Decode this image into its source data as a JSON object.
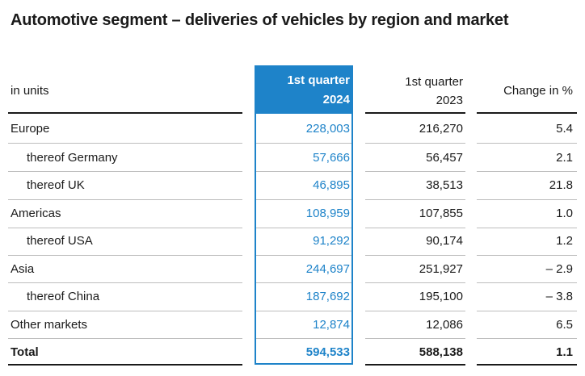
{
  "title": "Automotive segment – deliveries of vehicles by region and market",
  "header": {
    "units": "in units",
    "col1_line1": "1st quarter",
    "col1_line2": "2024",
    "col2_line1": "1st quarter",
    "col2_line2": "2023",
    "col3": "Change in %"
  },
  "rows": [
    {
      "label": "Europe",
      "q2024": "228,003",
      "q2023": "216,270",
      "change": "5.4"
    },
    {
      "label": "thereof Germany",
      "q2024": "57,666",
      "q2023": "56,457",
      "change": "2.1"
    },
    {
      "label": "thereof UK",
      "q2024": "46,895",
      "q2023": "38,513",
      "change": "21.8"
    },
    {
      "label": "Americas",
      "q2024": "108,959",
      "q2023": "107,855",
      "change": "1.0"
    },
    {
      "label": "thereof USA",
      "q2024": "91,292",
      "q2023": "90,174",
      "change": "1.2"
    },
    {
      "label": "Asia",
      "q2024": "244,697",
      "q2023": "251,927",
      "change": "– 2.9"
    },
    {
      "label": "thereof China",
      "q2024": "187,692",
      "q2023": "195,100",
      "change": "– 3.8"
    },
    {
      "label": "Other markets",
      "q2024": "12,874",
      "q2023": "12,086",
      "change": "6.5"
    },
    {
      "label": "Total",
      "q2024": "594,533",
      "q2023": "588,138",
      "change": "1.1"
    }
  ],
  "colors": {
    "accent": "#1e83c9",
    "text": "#1a1a1a",
    "rule": "#bdbdbd"
  }
}
